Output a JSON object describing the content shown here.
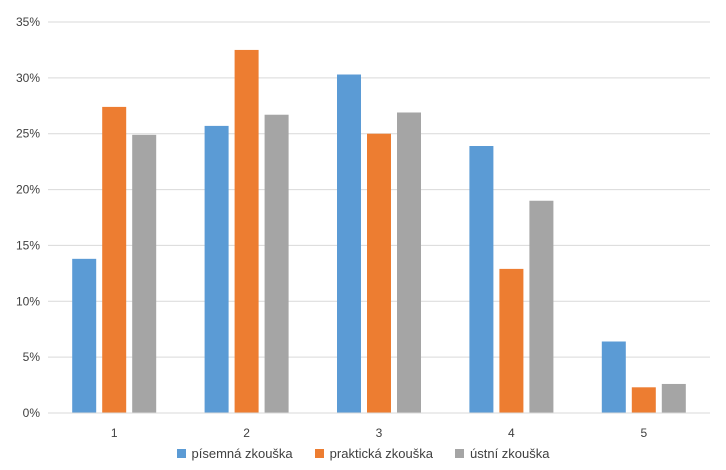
{
  "chart_data": {
    "type": "bar",
    "categories": [
      "1",
      "2",
      "3",
      "4",
      "5"
    ],
    "series": [
      {
        "name": "písemná zkouška",
        "color": "#5B9BD5",
        "values": [
          13.8,
          25.7,
          30.3,
          23.9,
          6.4
        ]
      },
      {
        "name": "praktická zkouška",
        "color": "#ED7D31",
        "values": [
          27.4,
          32.5,
          25.0,
          12.9,
          2.3
        ]
      },
      {
        "name": "ústní zkouška",
        "color": "#A5A5A5",
        "values": [
          24.9,
          26.7,
          26.9,
          19.0,
          2.6
        ]
      }
    ],
    "y_ticks": [
      "0%",
      "5%",
      "10%",
      "15%",
      "20%",
      "25%",
      "30%",
      "35%"
    ],
    "ylim": [
      0,
      35
    ],
    "grid": true,
    "legend_position": "bottom"
  }
}
